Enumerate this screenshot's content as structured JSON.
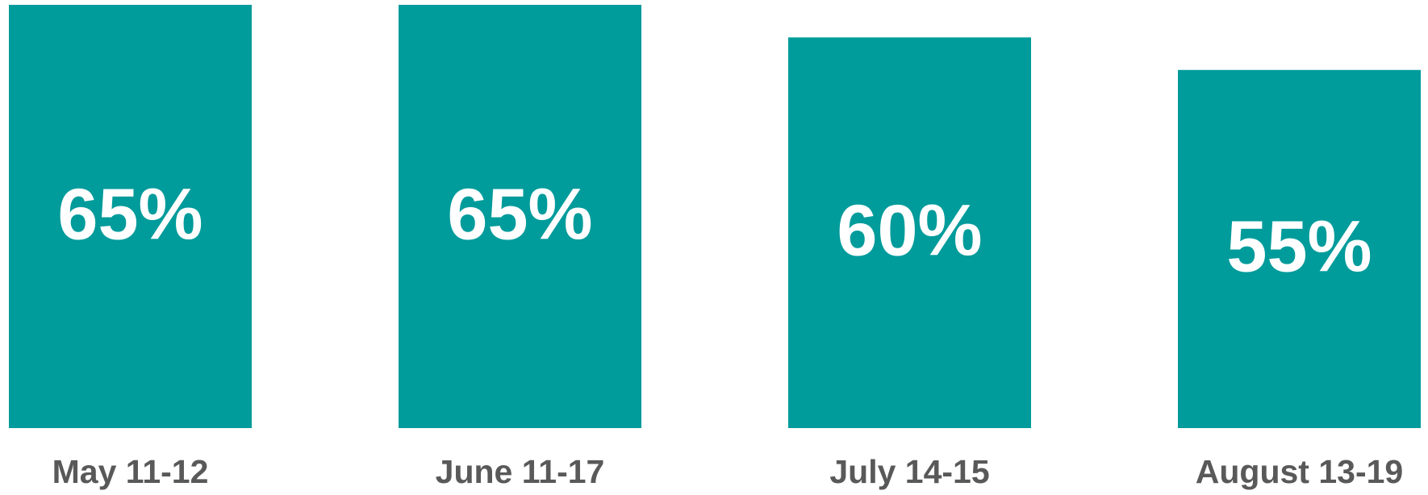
{
  "chart_data": {
    "type": "bar",
    "categories": [
      "May 11-12",
      "June 11-17",
      "July 14-15",
      "August 13-19"
    ],
    "values": [
      65,
      65,
      60,
      55
    ],
    "value_labels": [
      "65%",
      "65%",
      "60%",
      "55%"
    ],
    "color": "#009b9b"
  }
}
